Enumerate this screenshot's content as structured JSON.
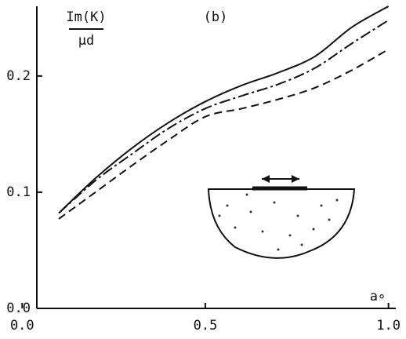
{
  "chart_data": {
    "type": "line",
    "ylabel_top": "Im(K)",
    "ylabel_bottom": "μd",
    "panel_label": "(b)",
    "xlabel": "a∘",
    "x": [
      0.1,
      0.2,
      0.3,
      0.4,
      0.5,
      0.6,
      0.7,
      0.8,
      0.9,
      1.0
    ],
    "series": [
      {
        "color": "#111111",
        "dash": "none",
        "values": [
          0.082,
          0.112,
          0.138,
          0.16,
          0.178,
          0.192,
          0.203,
          0.217,
          0.242,
          0.26
        ]
      },
      {
        "color": "#111111",
        "dash": "14 4 3 4",
        "values": [
          0.082,
          0.11,
          0.133,
          0.155,
          0.172,
          0.183,
          0.193,
          0.207,
          0.228,
          0.248
        ]
      },
      {
        "color": "#111111",
        "dash": "10 6",
        "values": [
          0.077,
          0.1,
          0.123,
          0.145,
          0.165,
          0.172,
          0.18,
          0.19,
          0.205,
          0.223
        ]
      }
    ],
    "xlim": [
      0.04,
      1.02
    ],
    "ylim": [
      0,
      0.26
    ],
    "xticks": [
      {
        "value": 0,
        "label": "0.0"
      },
      0.5,
      {
        "value": 1,
        "label": "1.0"
      }
    ],
    "yticks": [
      {
        "value": 0,
        "label": "0.0"
      },
      0.1,
      0.2
    ]
  }
}
